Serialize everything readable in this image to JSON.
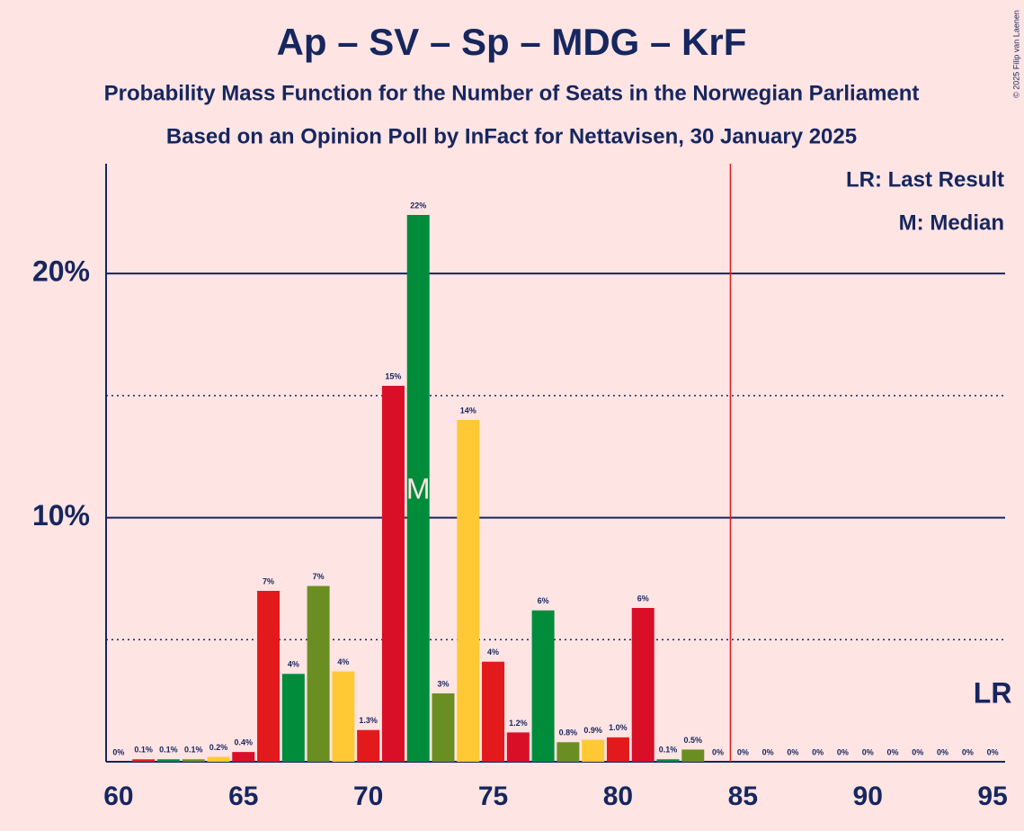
{
  "chart_data": {
    "type": "bar",
    "title": "Ap – SV – Sp – MDG – KrF",
    "subtitle": "Probability Mass Function for the Number of Seats in the Norwegian Parliament",
    "subtitle2": "Based on an Opinion Poll by InFact for Nettavisen, 30 January 2025",
    "copyright": "© 2025 Filip van Laenen",
    "legend": [
      "LR: Last Result",
      "M: Median"
    ],
    "x": [
      60,
      61,
      62,
      63,
      64,
      65,
      66,
      67,
      68,
      69,
      70,
      71,
      72,
      73,
      74,
      75,
      76,
      77,
      78,
      79,
      80,
      81,
      82,
      83,
      84,
      85,
      86,
      87,
      88,
      89,
      90,
      91,
      92,
      93,
      94,
      95
    ],
    "values": [
      0,
      0.1,
      0.1,
      0.1,
      0.2,
      0.4,
      7.0,
      3.6,
      7.2,
      3.7,
      1.3,
      15.4,
      22.4,
      2.8,
      14.0,
      4.1,
      1.2,
      6.2,
      0.8,
      0.9,
      1.0,
      6.3,
      0.1,
      0.5,
      0,
      0,
      0,
      0,
      0,
      0,
      0,
      0,
      0,
      0,
      0,
      0
    ],
    "value_labels": [
      "0%",
      "0.1%",
      "0.1%",
      "0.1%",
      "0.2%",
      "0.4%",
      "7%",
      "4%",
      "7%",
      "4%",
      "1.3%",
      "15%",
      "22%",
      "3%",
      "14%",
      "4%",
      "1.2%",
      "6%",
      "0.8%",
      "0.9%",
      "1.0%",
      "6%",
      "0.1%",
      "0.5%",
      "0%",
      "0%",
      "0%",
      "0%",
      "0%",
      "0%",
      "0%",
      "0%",
      "0%",
      "0%",
      "0%",
      "0%"
    ],
    "colors": [
      "#d80f27",
      "#e31a1c",
      "#008c3a",
      "#6b8e23",
      "#ffc935",
      "#d80f27",
      "#e31a1c",
      "#008c3a",
      "#6b8e23",
      "#ffc935",
      "#e31a1c",
      "#d80f27",
      "#008c3a",
      "#6b8e23",
      "#ffc935",
      "#e31a1c",
      "#d80f27",
      "#008c3a",
      "#6b8e23",
      "#ffc935",
      "#e31a1c",
      "#d80f27",
      "#008c3a",
      "#6b8e23",
      "#ffc935",
      "#e31a1c",
      "#d80f27",
      "#008c3a",
      "#6b8e23",
      "#ffc935",
      "#e31a1c",
      "#d80f27",
      "#008c3a",
      "#6b8e23",
      "#ffc935",
      "#e31a1c"
    ],
    "xlim": [
      59.5,
      95.5
    ],
    "xticks": [
      60,
      65,
      70,
      75,
      80,
      85,
      90,
      95
    ],
    "ylim": [
      0,
      24.5
    ],
    "yticks": [
      {
        "value": 10,
        "label": "10%"
      },
      {
        "value": 20,
        "label": "20%"
      }
    ],
    "minor_yticks": [
      5,
      15
    ],
    "median": 72,
    "median_label": "M",
    "last_result": 95,
    "last_result_label": "LR",
    "majority": 85,
    "majority_color": "#e31a1c"
  }
}
